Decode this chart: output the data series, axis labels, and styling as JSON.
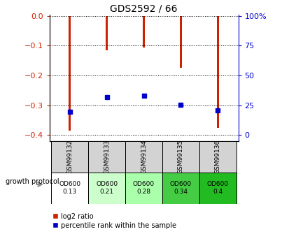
{
  "title": "GDS2592 / 66",
  "categories": [
    "GSM99132",
    "GSM99133",
    "GSM99134",
    "GSM99135",
    "GSM99136"
  ],
  "log2_ratio": [
    -0.385,
    -0.115,
    -0.105,
    -0.175,
    -0.375
  ],
  "percentile_rank": [
    -0.322,
    -0.272,
    -0.268,
    -0.298,
    -0.318
  ],
  "bar_color": "#cc2200",
  "dot_color": "#0000cc",
  "ylim_left": [
    -0.42,
    0.005
  ],
  "yticks_left": [
    0,
    -0.1,
    -0.2,
    -0.3,
    -0.4
  ],
  "right_ticks_pos": [
    0.0,
    -0.1,
    -0.2,
    -0.3,
    -0.4
  ],
  "right_labels": [
    "100%",
    "75",
    "50",
    "25",
    "0"
  ],
  "ylabel_left_color": "#cc2200",
  "ylabel_right_color": "#0000cc",
  "growth_protocol_labels": [
    "OD600\n0.13",
    "OD600\n0.21",
    "OD600\n0.28",
    "OD600\n0.34",
    "OD600\n0.4"
  ],
  "growth_protocol_colors": [
    "#ffffff",
    "#ccffcc",
    "#aaffaa",
    "#44cc44",
    "#22bb22"
  ],
  "legend_red_label": "log2 ratio",
  "legend_blue_label": "percentile rank within the sample",
  "bar_width": 0.07,
  "dot_size": 4,
  "background_color": "#ffffff"
}
